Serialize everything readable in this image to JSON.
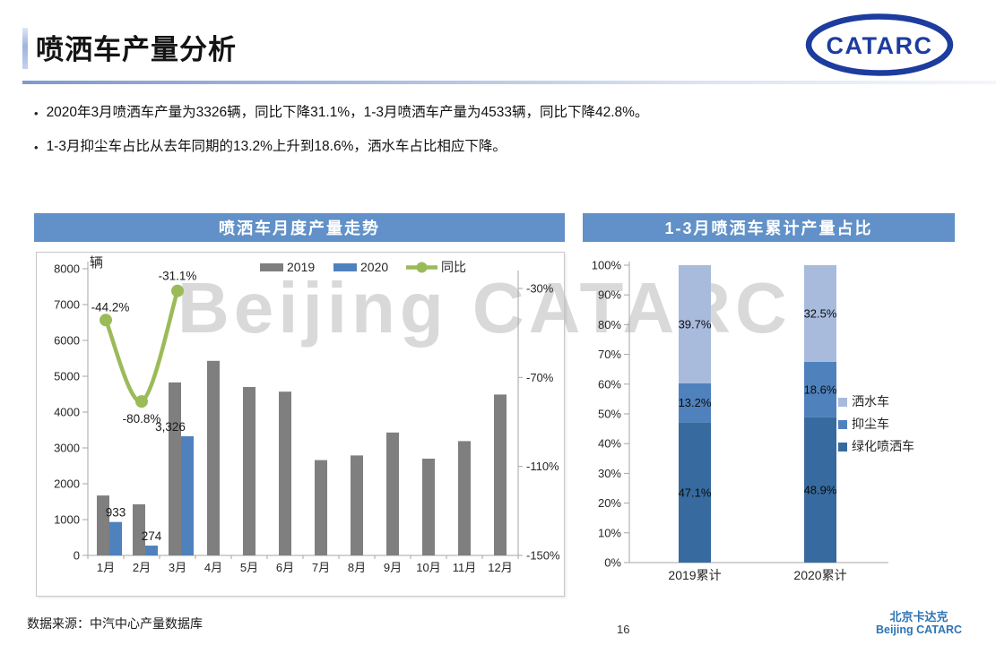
{
  "slide": {
    "title": "喷洒车产量分析",
    "logo_text": "CATARC",
    "watermark": "Beijing CATARC",
    "page_number": "16",
    "footer_source": "数据来源：中汽中心产量数据库",
    "brand_cn": "北京卡达克",
    "brand_en": "Beijing CATARC",
    "bullet_glyph": "•"
  },
  "bullets": [
    {
      "text": "2020年3月喷洒车产量为3326辆，同比下降31.1%，1-3月喷洒车产量为4533辆，同比下降42.8%。"
    },
    {
      "text": "1-3月抑尘车占比从去年同期的13.2%上升到18.6%，洒水车占比相应下降。"
    }
  ],
  "colors": {
    "header_bar": "#6191c8",
    "bar_2019": "#7f7f7f",
    "bar_2020": "#4f81bd",
    "line_yoy": "#9bbb59",
    "stack_dark": "#376a9f",
    "stack_mid": "#4f81bd",
    "stack_light": "#a8bbdd",
    "logo_blue": "#1c3c9e",
    "watermark": "#d9d9d9",
    "axis": "#a6a6a6"
  },
  "chart_data": [
    {
      "type": "bar",
      "panel_title": "喷洒车月度产量走势",
      "unit_label": "辆",
      "categories": [
        "1月",
        "2月",
        "3月",
        "4月",
        "5月",
        "6月",
        "7月",
        "8月",
        "9月",
        "10月",
        "11月",
        "12月"
      ],
      "series": [
        {
          "name": "2019",
          "type": "bar",
          "color": "#7f7f7f",
          "values": [
            1672,
            1427,
            4828,
            5430,
            4700,
            4570,
            2660,
            2790,
            3430,
            2700,
            3190,
            4490
          ]
        },
        {
          "name": "2020",
          "type": "bar",
          "color": "#4f81bd",
          "values": [
            933,
            274,
            3326
          ],
          "data_labels": [
            "933",
            "274",
            "3,326"
          ]
        },
        {
          "name": "同比",
          "type": "line",
          "color": "#9bbb59",
          "axis": "right",
          "values": [
            -44.2,
            -80.8,
            -31.1
          ],
          "data_labels": [
            "-44.2%",
            "-80.8%",
            "-31.1%"
          ]
        }
      ],
      "left_axis": {
        "min": 0,
        "max": 8000,
        "step": 1000
      },
      "right_axis": {
        "tick_values": [
          -30,
          -70,
          -110,
          -150
        ],
        "tick_labels": [
          "-30%",
          "-70%",
          "-110%",
          "-150%"
        ],
        "min": -150
      },
      "legend_position": "top",
      "grid": false
    },
    {
      "type": "bar",
      "subtype": "stacked",
      "panel_title": "1-3月喷洒车累计产量占比",
      "categories": [
        "2019累计",
        "2020累计"
      ],
      "series": [
        {
          "name": "绿化喷洒车",
          "color": "#376a9f",
          "values": [
            47.1,
            48.9
          ],
          "data_labels": [
            "47.1%",
            "48.9%"
          ]
        },
        {
          "name": "抑尘车",
          "color": "#4f81bd",
          "values": [
            13.2,
            18.6
          ],
          "data_labels": [
            "13.2%",
            "18.6%"
          ]
        },
        {
          "name": "洒水车",
          "color": "#a8bbdd",
          "values": [
            39.7,
            32.5
          ],
          "data_labels": [
            "39.7%",
            "32.5%"
          ]
        }
      ],
      "y_axis": {
        "min": 0,
        "max": 100,
        "step": 10,
        "suffix": "%"
      },
      "legend": [
        "洒水车",
        "抑尘车",
        "绿化喷洒车"
      ],
      "legend_position": "right",
      "grid": false
    }
  ]
}
